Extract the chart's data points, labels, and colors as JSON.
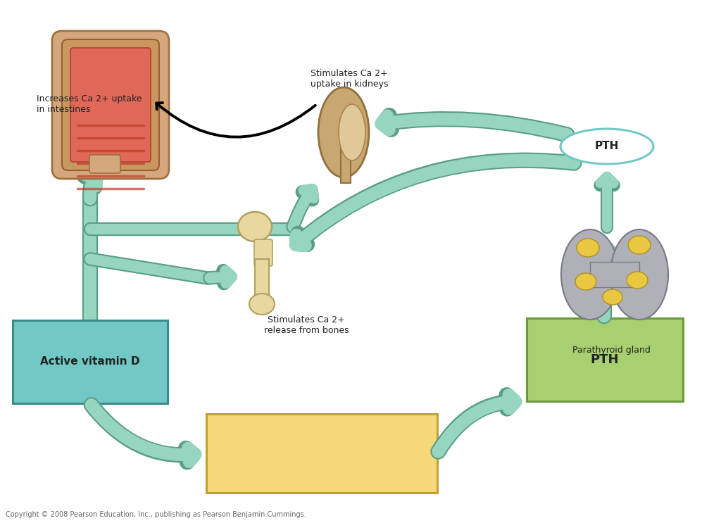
{
  "bg_color": "#ffffff",
  "arrow_color": "#96d5c0",
  "arrow_edge": "#5a9e85",
  "box_cyan_fill": "#72c8c5",
  "box_cyan_edge": "#3a8a87",
  "box_green_fill": "#a8d070",
  "box_green_edge": "#6a9a3a",
  "box_yellow_fill": "#f5d87a",
  "box_yellow_edge": "#c0a030",
  "oval_fill": "#ffffff",
  "oval_edge": "#72c8c5",
  "text_color": "#222222",
  "label_active_vit_d": "Active vitamin D",
  "label_pth_box": "PTH",
  "label_pth_oval": "PTH",
  "label_parathyroid": "Parathyroid gland",
  "label_intestine": "Increases Ca 2+ uptake\nin intestines",
  "label_kidney": "Stimulates Ca 2+\nuptake in kidneys",
  "label_bone": "Stimulates Ca 2+\nrelease from bones",
  "copyright": "Copyright © 2008 Pearson Education, Inc., publishing as Pearson Benjamin Cummings."
}
